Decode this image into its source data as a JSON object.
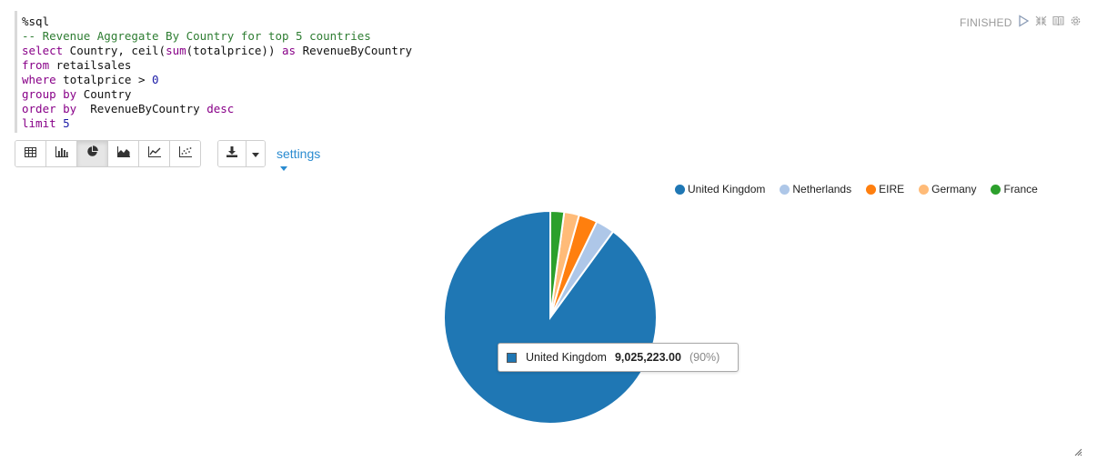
{
  "editor": {
    "lines": [
      [
        {
          "t": "%sql",
          "c": "plain"
        }
      ],
      [
        {
          "t": "-- Revenue Aggregate By Country for top 5 countries",
          "c": "cm"
        }
      ],
      [
        {
          "t": "select",
          "c": "kw"
        },
        {
          "t": " Country, ",
          "c": "plain"
        },
        {
          "t": "ceil",
          "c": "plain"
        },
        {
          "t": "(",
          "c": "plain"
        },
        {
          "t": "sum",
          "c": "fn"
        },
        {
          "t": "(totalprice)) ",
          "c": "plain"
        },
        {
          "t": "as",
          "c": "kw"
        },
        {
          "t": " RevenueByCountry",
          "c": "plain"
        }
      ],
      [
        {
          "t": "from",
          "c": "kw"
        },
        {
          "t": " retailsales",
          "c": "plain"
        }
      ],
      [
        {
          "t": "where",
          "c": "kw"
        },
        {
          "t": " totalprice > ",
          "c": "plain"
        },
        {
          "t": "0",
          "c": "num"
        }
      ],
      [
        {
          "t": "group by",
          "c": "kw"
        },
        {
          "t": " Country",
          "c": "plain"
        }
      ],
      [
        {
          "t": "order by",
          "c": "kw"
        },
        {
          "t": "  RevenueByCountry ",
          "c": "plain"
        },
        {
          "t": "desc",
          "c": "kw"
        }
      ],
      [
        {
          "t": "limit",
          "c": "kw"
        },
        {
          "t": " ",
          "c": "plain"
        },
        {
          "t": "5",
          "c": "num"
        }
      ]
    ]
  },
  "status": {
    "label": "FINISHED",
    "icons": [
      "run-icon",
      "expand-icon",
      "book-icon",
      "gear-icon"
    ]
  },
  "toolbar": {
    "view_buttons": [
      {
        "icon": "table-icon",
        "active": false
      },
      {
        "icon": "bar-chart-icon",
        "active": false
      },
      {
        "icon": "pie-chart-icon",
        "active": true
      },
      {
        "icon": "area-chart-icon",
        "active": false
      },
      {
        "icon": "line-chart-icon",
        "active": false
      },
      {
        "icon": "scatter-chart-icon",
        "active": false
      }
    ],
    "download_icon": "download-icon",
    "settings_label": "settings"
  },
  "chart_data": {
    "type": "pie",
    "categories": [
      "United Kingdom",
      "Netherlands",
      "EIRE",
      "Germany",
      "France"
    ],
    "values": [
      9025223,
      285446,
      283454,
      228868,
      209716
    ],
    "colors": [
      "#1f77b4",
      "#aec7e8",
      "#ff7f0e",
      "#ffbb78",
      "#2ca02c"
    ],
    "legend_position": "top-right",
    "highlighted": "United Kingdom"
  },
  "tooltip": {
    "name": "United Kingdom",
    "value": "9,025,223.00",
    "percent": "(90%)"
  }
}
